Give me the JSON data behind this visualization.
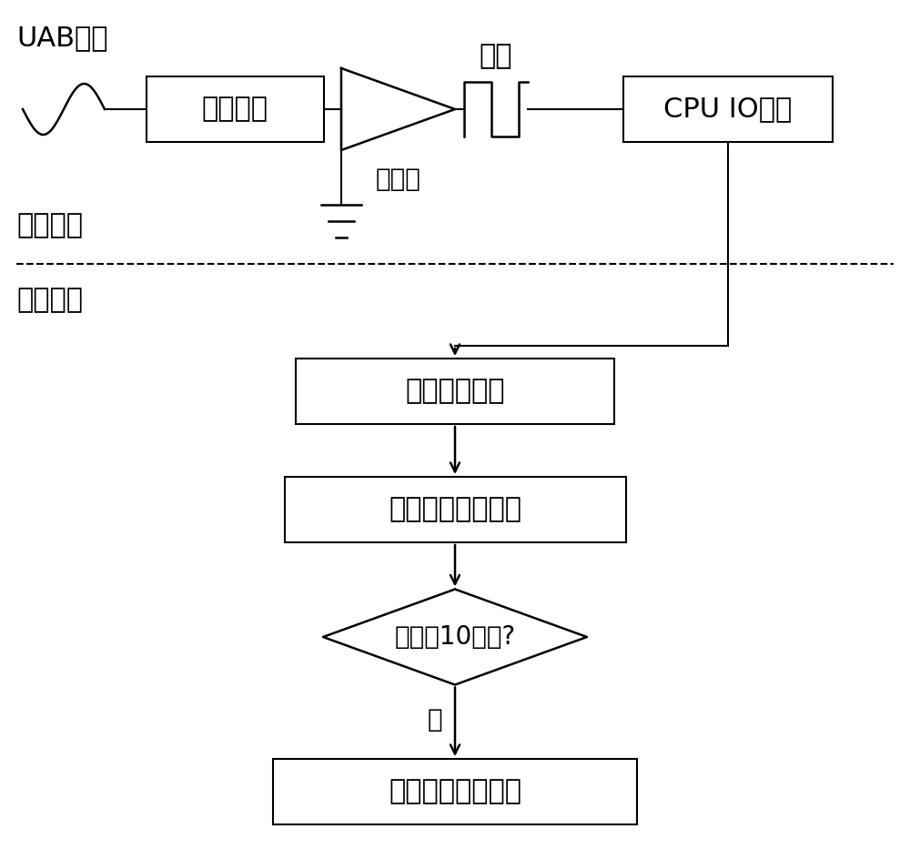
{
  "bg_color": "#ffffff",
  "line_color": "#000000",
  "text_color": "#000000",
  "font_size": 22,
  "small_font_size": 20,
  "label_uab": "UAB信号",
  "label_lpf": "低通滤波",
  "label_comparator": "比较器",
  "label_square_wave": "方波",
  "label_cpu": "CPU IO中断",
  "label_hardware": "硬件部分",
  "label_software": "软件部分",
  "label_sw_interrupt": "软件中断入口",
  "label_record": "记录上升沿时间差",
  "label_count": "计数满10周波?",
  "label_yes": "是",
  "label_calc": "计算硬件测频结果"
}
